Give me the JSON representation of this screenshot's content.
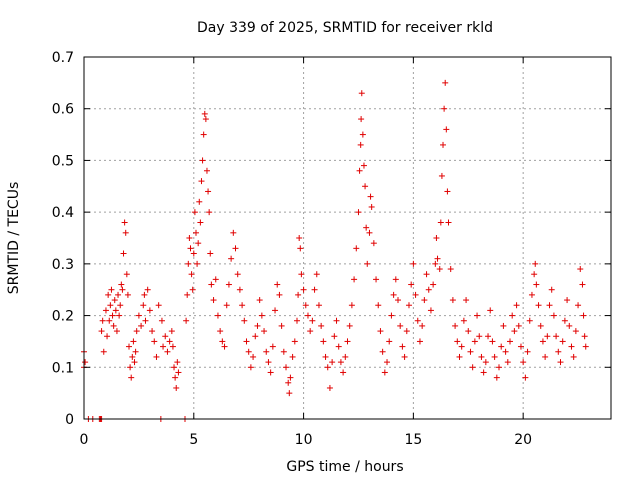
{
  "chart_data": {
    "type": "scatter",
    "title": "Day 339 of 2025, SRMTID for receiver rkld",
    "xlabel": "GPS time / hours",
    "ylabel": "SRMTID / TECUs",
    "xlim": [
      0,
      24
    ],
    "ylim": [
      0,
      0.7
    ],
    "xticks": [
      0,
      5,
      10,
      15,
      20
    ],
    "xtick_labels": [
      "0",
      "5",
      "10",
      "15",
      "20"
    ],
    "yticks": [
      0,
      0.1,
      0.2,
      0.3,
      0.4,
      0.5,
      0.6,
      0.7
    ],
    "ytick_labels": [
      "0",
      "0.1",
      "0.2",
      "0.3",
      "0.4",
      "0.5",
      "0.6",
      "0.7"
    ],
    "grid": true,
    "marker": "+",
    "color": "#e00000",
    "series": [
      {
        "name": "SRMTID",
        "points": [
          [
            0.0,
            0.13
          ],
          [
            0.0,
            0.1
          ],
          [
            0.05,
            0.11
          ],
          [
            0.2,
            0.0
          ],
          [
            0.4,
            0.0
          ],
          [
            0.7,
            0.0
          ],
          [
            0.75,
            0.0
          ],
          [
            0.8,
            0.0
          ],
          [
            0.8,
            0.17
          ],
          [
            0.85,
            0.19
          ],
          [
            0.9,
            0.13
          ],
          [
            1.0,
            0.21
          ],
          [
            1.05,
            0.16
          ],
          [
            1.1,
            0.24
          ],
          [
            1.15,
            0.19
          ],
          [
            1.2,
            0.22
          ],
          [
            1.25,
            0.25
          ],
          [
            1.3,
            0.2
          ],
          [
            1.35,
            0.18
          ],
          [
            1.4,
            0.23
          ],
          [
            1.45,
            0.21
          ],
          [
            1.5,
            0.17
          ],
          [
            1.55,
            0.24
          ],
          [
            1.6,
            0.2
          ],
          [
            1.65,
            0.22
          ],
          [
            1.7,
            0.26
          ],
          [
            1.75,
            0.25
          ],
          [
            1.8,
            0.32
          ],
          [
            1.85,
            0.38
          ],
          [
            1.9,
            0.36
          ],
          [
            1.95,
            0.28
          ],
          [
            2.0,
            0.24
          ],
          [
            2.05,
            0.14
          ],
          [
            2.1,
            0.1
          ],
          [
            2.15,
            0.08
          ],
          [
            2.2,
            0.12
          ],
          [
            2.25,
            0.15
          ],
          [
            2.3,
            0.11
          ],
          [
            2.35,
            0.13
          ],
          [
            2.4,
            0.17
          ],
          [
            2.5,
            0.2
          ],
          [
            2.6,
            0.18
          ],
          [
            2.7,
            0.22
          ],
          [
            2.75,
            0.24
          ],
          [
            2.8,
            0.19
          ],
          [
            2.9,
            0.25
          ],
          [
            3.0,
            0.21
          ],
          [
            3.1,
            0.17
          ],
          [
            3.2,
            0.15
          ],
          [
            3.3,
            0.12
          ],
          [
            3.4,
            0.22
          ],
          [
            3.5,
            0.0
          ],
          [
            3.55,
            0.19
          ],
          [
            3.6,
            0.14
          ],
          [
            3.7,
            0.16
          ],
          [
            3.8,
            0.13
          ],
          [
            3.9,
            0.15
          ],
          [
            4.0,
            0.17
          ],
          [
            4.05,
            0.14
          ],
          [
            4.1,
            0.1
          ],
          [
            4.15,
            0.08
          ],
          [
            4.2,
            0.06
          ],
          [
            4.25,
            0.11
          ],
          [
            4.3,
            0.09
          ],
          [
            4.6,
            0.0
          ],
          [
            4.65,
            0.19
          ],
          [
            4.7,
            0.24
          ],
          [
            4.75,
            0.3
          ],
          [
            4.8,
            0.35
          ],
          [
            4.85,
            0.33
          ],
          [
            4.9,
            0.28
          ],
          [
            4.95,
            0.25
          ],
          [
            5.0,
            0.32
          ],
          [
            5.05,
            0.4
          ],
          [
            5.1,
            0.36
          ],
          [
            5.15,
            0.3
          ],
          [
            5.2,
            0.34
          ],
          [
            5.25,
            0.42
          ],
          [
            5.3,
            0.38
          ],
          [
            5.35,
            0.46
          ],
          [
            5.4,
            0.5
          ],
          [
            5.45,
            0.55
          ],
          [
            5.5,
            0.59
          ],
          [
            5.55,
            0.58
          ],
          [
            5.6,
            0.48
          ],
          [
            5.65,
            0.44
          ],
          [
            5.7,
            0.4
          ],
          [
            5.75,
            0.32
          ],
          [
            5.8,
            0.26
          ],
          [
            5.9,
            0.23
          ],
          [
            6.0,
            0.27
          ],
          [
            6.1,
            0.2
          ],
          [
            6.2,
            0.17
          ],
          [
            6.3,
            0.15
          ],
          [
            6.4,
            0.14
          ],
          [
            6.5,
            0.22
          ],
          [
            6.6,
            0.26
          ],
          [
            6.7,
            0.31
          ],
          [
            6.8,
            0.36
          ],
          [
            6.9,
            0.33
          ],
          [
            7.0,
            0.28
          ],
          [
            7.1,
            0.25
          ],
          [
            7.2,
            0.22
          ],
          [
            7.3,
            0.19
          ],
          [
            7.4,
            0.15
          ],
          [
            7.5,
            0.13
          ],
          [
            7.6,
            0.1
          ],
          [
            7.7,
            0.12
          ],
          [
            7.8,
            0.16
          ],
          [
            7.9,
            0.18
          ],
          [
            8.0,
            0.23
          ],
          [
            8.1,
            0.2
          ],
          [
            8.2,
            0.17
          ],
          [
            8.3,
            0.13
          ],
          [
            8.4,
            0.11
          ],
          [
            8.5,
            0.09
          ],
          [
            8.6,
            0.14
          ],
          [
            8.7,
            0.21
          ],
          [
            8.8,
            0.26
          ],
          [
            8.9,
            0.24
          ],
          [
            9.0,
            0.18
          ],
          [
            9.1,
            0.13
          ],
          [
            9.2,
            0.1
          ],
          [
            9.3,
            0.07
          ],
          [
            9.35,
            0.05
          ],
          [
            9.4,
            0.08
          ],
          [
            9.5,
            0.12
          ],
          [
            9.6,
            0.15
          ],
          [
            9.7,
            0.19
          ],
          [
            9.75,
            0.24
          ],
          [
            9.8,
            0.35
          ],
          [
            9.85,
            0.33
          ],
          [
            9.9,
            0.28
          ],
          [
            10.0,
            0.25
          ],
          [
            10.1,
            0.22
          ],
          [
            10.2,
            0.2
          ],
          [
            10.3,
            0.17
          ],
          [
            10.4,
            0.19
          ],
          [
            10.5,
            0.25
          ],
          [
            10.6,
            0.28
          ],
          [
            10.7,
            0.22
          ],
          [
            10.8,
            0.18
          ],
          [
            10.9,
            0.15
          ],
          [
            11.0,
            0.12
          ],
          [
            11.1,
            0.1
          ],
          [
            11.2,
            0.06
          ],
          [
            11.3,
            0.11
          ],
          [
            11.4,
            0.16
          ],
          [
            11.5,
            0.19
          ],
          [
            11.6,
            0.14
          ],
          [
            11.7,
            0.11
          ],
          [
            11.8,
            0.09
          ],
          [
            11.9,
            0.12
          ],
          [
            12.0,
            0.15
          ],
          [
            12.1,
            0.18
          ],
          [
            12.2,
            0.22
          ],
          [
            12.3,
            0.27
          ],
          [
            12.4,
            0.33
          ],
          [
            12.5,
            0.4
          ],
          [
            12.55,
            0.48
          ],
          [
            12.6,
            0.53
          ],
          [
            12.62,
            0.58
          ],
          [
            12.65,
            0.63
          ],
          [
            12.7,
            0.55
          ],
          [
            12.75,
            0.49
          ],
          [
            12.8,
            0.45
          ],
          [
            12.85,
            0.37
          ],
          [
            12.9,
            0.3
          ],
          [
            13.0,
            0.36
          ],
          [
            13.05,
            0.43
          ],
          [
            13.1,
            0.41
          ],
          [
            13.2,
            0.34
          ],
          [
            13.3,
            0.27
          ],
          [
            13.4,
            0.22
          ],
          [
            13.5,
            0.17
          ],
          [
            13.6,
            0.13
          ],
          [
            13.7,
            0.09
          ],
          [
            13.8,
            0.11
          ],
          [
            13.9,
            0.15
          ],
          [
            14.0,
            0.2
          ],
          [
            14.1,
            0.24
          ],
          [
            14.2,
            0.27
          ],
          [
            14.3,
            0.23
          ],
          [
            14.4,
            0.18
          ],
          [
            14.5,
            0.14
          ],
          [
            14.6,
            0.12
          ],
          [
            14.7,
            0.17
          ],
          [
            14.8,
            0.22
          ],
          [
            14.9,
            0.26
          ],
          [
            15.0,
            0.3
          ],
          [
            15.1,
            0.24
          ],
          [
            15.2,
            0.19
          ],
          [
            15.3,
            0.15
          ],
          [
            15.4,
            0.18
          ],
          [
            15.5,
            0.23
          ],
          [
            15.6,
            0.28
          ],
          [
            15.7,
            0.25
          ],
          [
            15.8,
            0.21
          ],
          [
            15.9,
            0.26
          ],
          [
            16.0,
            0.3
          ],
          [
            16.05,
            0.35
          ],
          [
            16.1,
            0.31
          ],
          [
            16.2,
            0.29
          ],
          [
            16.25,
            0.38
          ],
          [
            16.3,
            0.47
          ],
          [
            16.35,
            0.53
          ],
          [
            16.4,
            0.6
          ],
          [
            16.45,
            0.65
          ],
          [
            16.5,
            0.56
          ],
          [
            16.55,
            0.44
          ],
          [
            16.6,
            0.38
          ],
          [
            16.7,
            0.29
          ],
          [
            16.8,
            0.23
          ],
          [
            16.9,
            0.18
          ],
          [
            17.0,
            0.15
          ],
          [
            17.1,
            0.12
          ],
          [
            17.2,
            0.14
          ],
          [
            17.3,
            0.19
          ],
          [
            17.4,
            0.23
          ],
          [
            17.5,
            0.17
          ],
          [
            17.6,
            0.13
          ],
          [
            17.7,
            0.1
          ],
          [
            17.8,
            0.15
          ],
          [
            17.9,
            0.2
          ],
          [
            18.0,
            0.16
          ],
          [
            18.1,
            0.12
          ],
          [
            18.2,
            0.09
          ],
          [
            18.3,
            0.11
          ],
          [
            18.4,
            0.16
          ],
          [
            18.5,
            0.21
          ],
          [
            18.6,
            0.15
          ],
          [
            18.7,
            0.12
          ],
          [
            18.8,
            0.08
          ],
          [
            18.9,
            0.1
          ],
          [
            19.0,
            0.14
          ],
          [
            19.1,
            0.18
          ],
          [
            19.2,
            0.13
          ],
          [
            19.3,
            0.11
          ],
          [
            19.4,
            0.15
          ],
          [
            19.5,
            0.2
          ],
          [
            19.6,
            0.17
          ],
          [
            19.7,
            0.22
          ],
          [
            19.8,
            0.18
          ],
          [
            19.9,
            0.14
          ],
          [
            20.0,
            0.11
          ],
          [
            20.1,
            0.08
          ],
          [
            20.2,
            0.13
          ],
          [
            20.3,
            0.19
          ],
          [
            20.4,
            0.24
          ],
          [
            20.5,
            0.28
          ],
          [
            20.55,
            0.3
          ],
          [
            20.6,
            0.26
          ],
          [
            20.7,
            0.22
          ],
          [
            20.8,
            0.18
          ],
          [
            20.9,
            0.15
          ],
          [
            21.0,
            0.12
          ],
          [
            21.1,
            0.16
          ],
          [
            21.2,
            0.22
          ],
          [
            21.3,
            0.25
          ],
          [
            21.4,
            0.2
          ],
          [
            21.5,
            0.16
          ],
          [
            21.6,
            0.13
          ],
          [
            21.7,
            0.11
          ],
          [
            21.8,
            0.15
          ],
          [
            21.9,
            0.19
          ],
          [
            22.0,
            0.23
          ],
          [
            22.1,
            0.18
          ],
          [
            22.2,
            0.14
          ],
          [
            22.3,
            0.12
          ],
          [
            22.4,
            0.17
          ],
          [
            22.5,
            0.22
          ],
          [
            22.6,
            0.29
          ],
          [
            22.7,
            0.26
          ],
          [
            22.75,
            0.2
          ],
          [
            22.8,
            0.16
          ],
          [
            22.85,
            0.14
          ]
        ]
      }
    ]
  }
}
